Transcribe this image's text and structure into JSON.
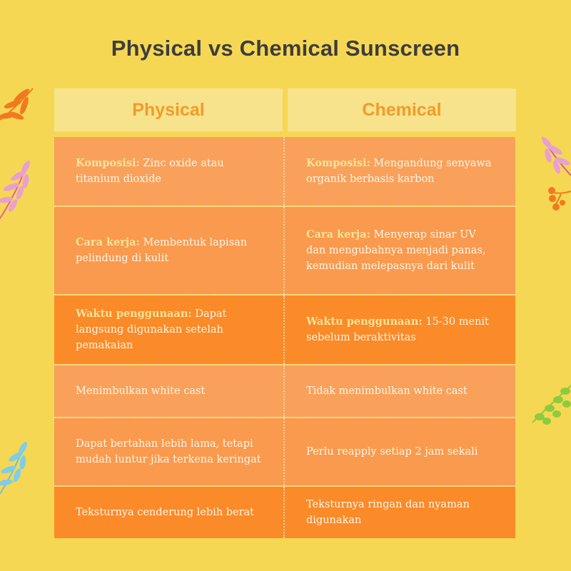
{
  "title": "Physical vs Chemical Sunscreen",
  "headers": {
    "left": "Physical",
    "right": "Chemical"
  },
  "rows": [
    {
      "left": {
        "label": "Komposisi:",
        "text": " Zinc oxide atau titanium dioxide"
      },
      "right": {
        "label": "Komposisi:",
        "text": " Mengandung senyawa organik berbasis karbon"
      }
    },
    {
      "left": {
        "label": "Cara kerja:",
        "text": " Membentuk lapisan pelindung di kulit"
      },
      "right": {
        "label": "Cara kerja:",
        "text": " Menyerap sinar UV dan mengubahnya menjadi panas, kemudian melepasnya dari kulit"
      }
    },
    {
      "left": {
        "label": "Waktu penggunaan:",
        "text": " Dapat langsung digunakan setelah pemakaian"
      },
      "right": {
        "label": "Waktu penggunaan:",
        "text": " 15-30 menit sebelum beraktivitas"
      }
    },
    {
      "left": {
        "text": "Menimbulkan white cast"
      },
      "right": {
        "text": "Tidak menimbulkan white cast"
      }
    },
    {
      "left": {
        "text": "Dapat bertahan lebih lama, tetapi mudah luntur jika terkena keringat"
      },
      "right": {
        "text": "Perlu reapply setiap 2 jam sekali"
      }
    },
    {
      "left": {
        "text": "Teksturnya cenderung lebih berat"
      },
      "right": {
        "text": "Teksturnya ringan dan nyaman digunakan"
      }
    }
  ],
  "colors": {
    "background": "#f6d754",
    "header_bg": "#f7e38b",
    "header_text": "#f39a2c",
    "row_light": "#f9a15b",
    "row_mid": "#f99a4e",
    "row_dark": "#fb8a28",
    "label_text": "#fbe39a"
  },
  "icons": [
    "orange-leaf-sprig-icon",
    "pink-leaf-sprig-icon",
    "blue-leaf-sprig-icon",
    "pink-leaf-sprig-right-icon",
    "orange-berries-icon",
    "green-leaf-sprig-icon"
  ]
}
